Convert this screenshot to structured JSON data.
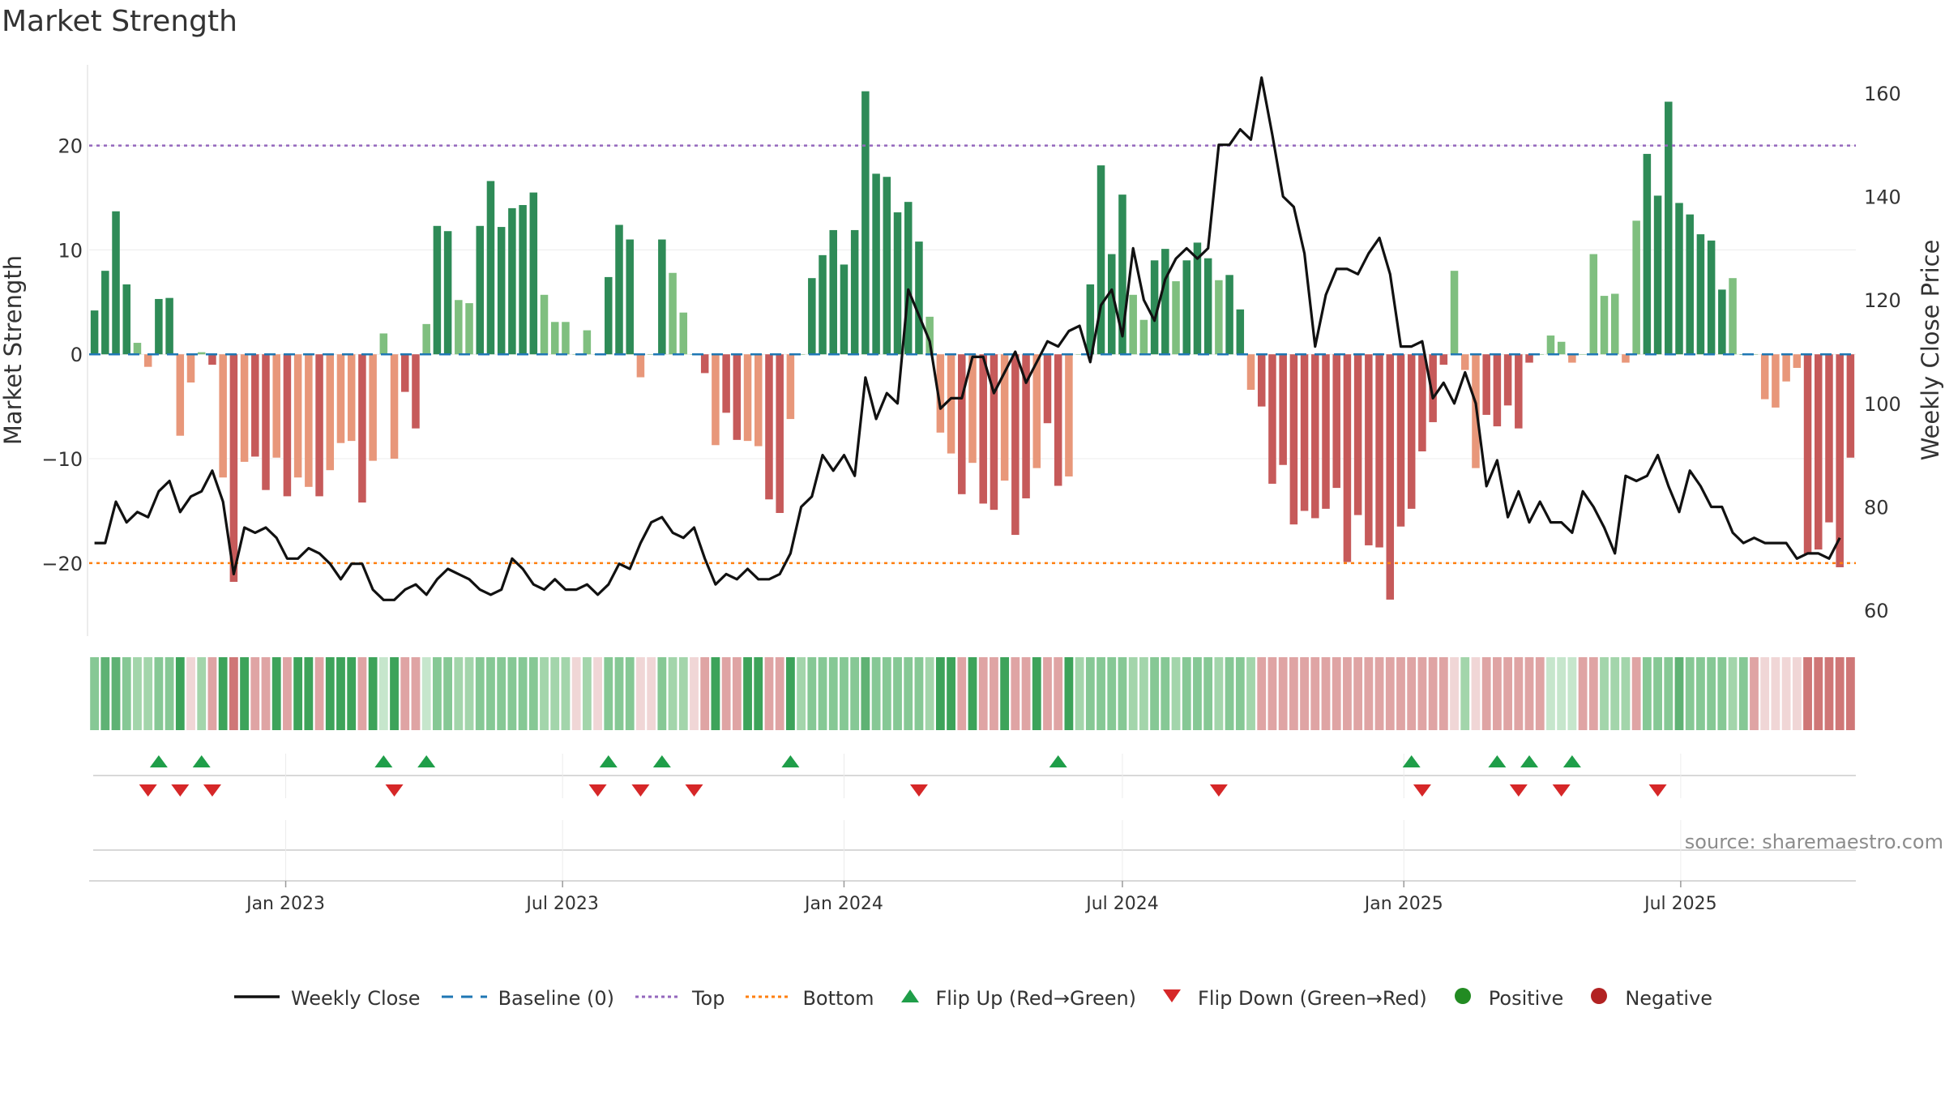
{
  "title": "Market Strength",
  "source": "source: sharemaestro.com",
  "colors": {
    "pos_dark": "#2e8b57",
    "pos_light": "#7fbf7f",
    "neg_dark": "#c65a5a",
    "neg_light": "#e8977a",
    "close": "#111111",
    "baseline": "#1f77b4",
    "top": "#9467bd",
    "bottom": "#ff7f0e",
    "flip_up": "#1f9e49",
    "flip_down": "#d62728",
    "positive": "#228b22",
    "negative": "#b22222"
  },
  "chart_data": {
    "type": "bar",
    "title": "Market Strength",
    "ylabel": "Market Strength",
    "y2label": "Weekly Close Price",
    "ylim": [
      -27,
      27.5
    ],
    "y2lim": [
      55,
      165
    ],
    "yticks": [
      -20,
      -10,
      0,
      10,
      20
    ],
    "ytick_labels": [
      "−20",
      "−10",
      "0",
      "10",
      "20"
    ],
    "y2ticks": [
      60,
      80,
      100,
      120,
      140,
      160
    ],
    "x_start": "2022-08-29",
    "week_days": 7,
    "xticks": [
      {
        "label": "Jan 2023",
        "date": "2023-01-01"
      },
      {
        "label": "Jul 2023",
        "date": "2023-07-01"
      },
      {
        "label": "Jan 2024",
        "date": "2024-01-01"
      },
      {
        "label": "Jul 2024",
        "date": "2024-07-01"
      },
      {
        "label": "Jan 2025",
        "date": "2025-01-01"
      },
      {
        "label": "Jul 2025",
        "date": "2025-07-01"
      }
    ],
    "top_threshold": 20,
    "bottom_threshold": -20,
    "strength": [
      4.2,
      8,
      13.7,
      6.7,
      1.1,
      -1.2,
      5.3,
      5.4,
      -7.8,
      -2.7,
      0.2,
      -1,
      -11.8,
      -21.8,
      -10.3,
      -9.8,
      -13,
      -9.9,
      -13.6,
      -11.8,
      -12.7,
      -13.6,
      -11.1,
      -8.5,
      -8.3,
      -14.2,
      -10.2,
      2,
      -10,
      -3.6,
      -7.1,
      2.9,
      12.3,
      11.8,
      5.2,
      4.9,
      12.3,
      16.6,
      12.2,
      14,
      14.3,
      15.5,
      5.7,
      3.1,
      3.1,
      0,
      2.3,
      0,
      7.4,
      12.4,
      11,
      -2.2,
      0,
      11,
      7.8,
      4,
      0,
      -1.8,
      -8.7,
      -5.6,
      -8.2,
      -8.3,
      -8.8,
      -13.9,
      -15.2,
      -6.2,
      0,
      7.3,
      9.5,
      11.9,
      8.6,
      11.9,
      25.2,
      17.3,
      17,
      13.6,
      14.6,
      10.8,
      3.6,
      -7.5,
      -9.5,
      -13.4,
      -10.4,
      -14.3,
      -14.9,
      -12.1,
      -17.3,
      -13.8,
      -10.9,
      -6.6,
      -12.6,
      -11.7,
      0,
      6.7,
      18.1,
      9.6,
      15.3,
      5.7,
      3.3,
      9,
      10.1,
      7,
      9,
      10.7,
      9.2,
      7.1,
      7.6,
      4.3,
      -3.4,
      -5,
      -12.4,
      -10.6,
      -16.3,
      -15,
      -15.7,
      -14.8,
      -12.8,
      -19.9,
      -15.4,
      -18.3,
      -18.5,
      -23.5,
      -16.5,
      -14.8,
      -9.3,
      -6.5,
      -1,
      8,
      -1.5,
      -10.9,
      -5.8,
      -6.9,
      -4.9,
      -7.1,
      -0.8,
      0,
      1.8,
      1.2,
      -0.8,
      0,
      9.6,
      5.6,
      5.8,
      -0.8,
      12.8,
      19.2,
      15.2,
      24.2,
      14.5,
      13.4,
      11.5,
      10.9,
      6.2,
      7.3,
      0,
      0,
      -4.3,
      -5.1,
      -2.6,
      -1.3,
      -19.1,
      -18.7,
      -16.1,
      -20.4,
      -9.9
    ],
    "close": [
      73,
      73,
      81,
      77,
      79,
      78,
      83,
      85,
      79,
      82,
      83,
      87,
      81,
      67,
      76,
      75,
      76,
      74,
      70,
      70,
      72,
      71,
      69,
      66,
      69,
      69,
      64,
      62,
      62,
      64,
      65,
      63,
      66,
      68,
      67,
      66,
      64,
      63,
      64,
      70,
      68,
      65,
      64,
      66,
      64,
      64,
      65,
      63,
      65,
      69,
      68,
      73,
      77,
      78,
      75,
      74,
      76,
      70,
      65,
      67,
      66,
      68,
      66,
      66,
      67,
      71,
      80,
      82,
      90,
      87,
      90,
      86,
      105,
      97,
      102,
      100,
      122,
      117,
      112,
      99,
      101,
      101,
      109,
      109,
      102,
      106,
      110,
      104,
      108,
      112,
      111,
      114,
      115,
      108,
      119,
      122,
      113,
      130,
      120,
      116,
      124,
      128,
      130,
      128,
      130,
      150,
      150,
      153,
      151,
      163,
      152,
      140,
      138,
      129,
      111,
      121,
      126,
      126,
      125,
      129,
      132,
      125,
      111,
      111,
      112,
      101,
      104,
      100,
      106,
      100,
      84,
      89,
      78,
      83,
      77,
      81,
      77,
      77,
      75,
      83,
      80,
      76,
      71,
      86,
      85,
      86,
      90,
      84,
      79,
      87,
      84,
      80,
      80,
      75,
      73,
      74,
      73,
      73,
      73,
      70,
      71,
      71,
      70,
      74
    ],
    "bar_shades": [
      3,
      4,
      4,
      3,
      2,
      2,
      3,
      3,
      5,
      7,
      2,
      6,
      5,
      8,
      5,
      6,
      6,
      5,
      6,
      5,
      5,
      6,
      5,
      5,
      5,
      6,
      5,
      1,
      5,
      6,
      6,
      1,
      3,
      3,
      2,
      2,
      3,
      3,
      3,
      3,
      3,
      3,
      2,
      2,
      2,
      7,
      2,
      7,
      3,
      3,
      3,
      7,
      7,
      3,
      2,
      2,
      7,
      6,
      5,
      6,
      6,
      5,
      5,
      6,
      6,
      5,
      2,
      3,
      3,
      3,
      3,
      3,
      4,
      3,
      3,
      3,
      3,
      3,
      2,
      5,
      5,
      6,
      5,
      6,
      6,
      5,
      6,
      6,
      5,
      6,
      6,
      5,
      2,
      3,
      3,
      3,
      3,
      2,
      2,
      3,
      3,
      2,
      3,
      3,
      3,
      2,
      3,
      3,
      2,
      6,
      6,
      6,
      6,
      6,
      6,
      6,
      6,
      6,
      6,
      6,
      6,
      6,
      6,
      6,
      6,
      6,
      6,
      7,
      2,
      7,
      6,
      6,
      6,
      6,
      6,
      6,
      1,
      1,
      1,
      6,
      6,
      2,
      2,
      2,
      6,
      3,
      3,
      3,
      4,
      3,
      3,
      3,
      3,
      2,
      3,
      6,
      7,
      7,
      7,
      7,
      8,
      8,
      8,
      8,
      8
    ],
    "flip_up": [
      6,
      10,
      27,
      31,
      48,
      53,
      65,
      90,
      123,
      131,
      134,
      138
    ],
    "flip_down": [
      5,
      8,
      11,
      28,
      47,
      51,
      56,
      77,
      105,
      124,
      133,
      137,
      146
    ],
    "legend": [
      {
        "label": "Weekly Close",
        "kind": "line"
      },
      {
        "label": "Baseline (0)",
        "kind": "dash"
      },
      {
        "label": "Top",
        "kind": "dot-purple"
      },
      {
        "label": "Bottom",
        "kind": "dot-orange"
      },
      {
        "label": "Flip Up (Red→Green)",
        "kind": "tri-up"
      },
      {
        "label": "Flip Down (Green→Red)",
        "kind": "tri-down"
      },
      {
        "label": "Positive",
        "kind": "dot-green"
      },
      {
        "label": "Negative",
        "kind": "dot-red"
      }
    ]
  }
}
